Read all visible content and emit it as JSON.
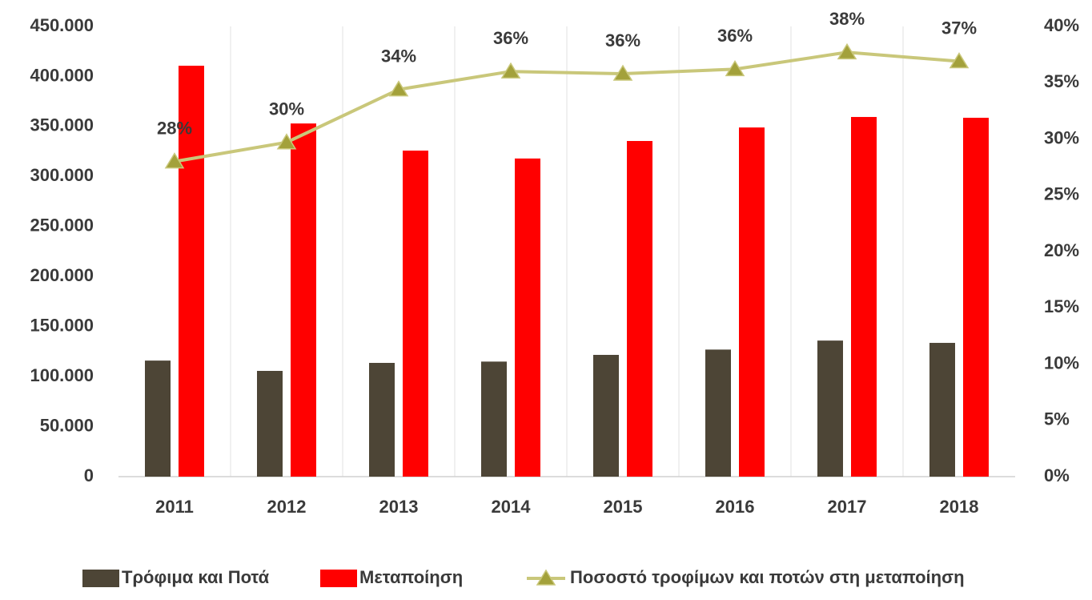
{
  "chart_data": {
    "type": "bar",
    "categories": [
      "2011",
      "2012",
      "2013",
      "2014",
      "2015",
      "2016",
      "2017",
      "2018"
    ],
    "series": [
      {
        "name": "Τρόφιμα και Ποτά",
        "color": "#4d4536",
        "values": [
          116000,
          105700,
          113700,
          115000,
          121700,
          127000,
          136000,
          133700
        ]
      },
      {
        "name": "Μεταποίηση",
        "color": "#ff0000",
        "values": [
          410700,
          353000,
          325900,
          318000,
          335500,
          349000,
          359500,
          358700
        ]
      },
      {
        "name": "Ποσοστό τροφίμων και ποτών στη μεταποίηση",
        "type": "line",
        "axis": "y2",
        "color": "#c9c77a",
        "marker_color": "#a3a13b",
        "values": [
          28.0,
          29.7,
          34.4,
          36.0,
          35.8,
          36.2,
          37.7,
          36.9
        ],
        "value_labels": [
          "28%",
          "30%",
          "34%",
          "36%",
          "36%",
          "36%",
          "38%",
          "37%"
        ]
      }
    ],
    "ylim": [
      0,
      450000
    ],
    "yticks": [
      0,
      {
        "value": 50000,
        "label": "50.000"
      },
      {
        "value": 100000,
        "label": "100.000"
      },
      {
        "value": 150000,
        "label": "150.000"
      },
      {
        "value": 200000,
        "label": "200.000"
      },
      {
        "value": 250000,
        "label": "250.000"
      },
      {
        "value": 300000,
        "label": "300.000"
      },
      {
        "value": 350000,
        "label": "350.000"
      },
      {
        "value": 400000,
        "label": "400.000"
      },
      {
        "value": 450000,
        "label": "450.000"
      }
    ],
    "y2lim": [
      0,
      40
    ],
    "y2ticks": [
      {
        "value": 0,
        "label": "0%"
      },
      {
        "value": 5,
        "label": "5%"
      },
      {
        "value": 10,
        "label": "10%"
      },
      {
        "value": 15,
        "label": "15%"
      },
      {
        "value": 20,
        "label": "20%"
      },
      {
        "value": 25,
        "label": "25%"
      },
      {
        "value": 30,
        "label": "30%"
      },
      {
        "value": 35,
        "label": "35%"
      },
      {
        "value": 40,
        "label": "40%"
      }
    ],
    "legend": "bottom",
    "grid": "vertical"
  }
}
